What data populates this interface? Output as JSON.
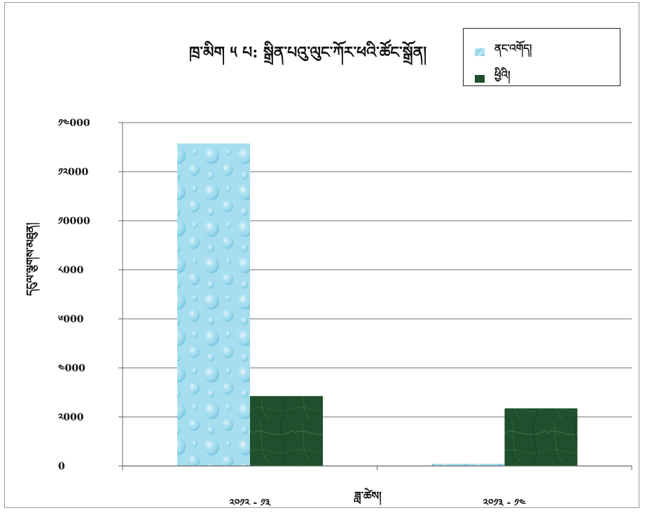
{
  "chart_data": {
    "type": "bar",
    "title": "ཁྲ་མིག ༥ པ: སྒྲིན་པའུ་ལུང་ཀོར་ཕའི་ཚོང་སྒྲོན།",
    "xlabel": "ཟླ་ཚེས།",
    "ylabel": "དངུལ་ལྕགས་མཐུན།",
    "categories": [
      "༢༠༡༢ - ༡༣",
      "༢༠༡༣ - ༡༤"
    ],
    "series": [
      {
        "name": "ནང་འགོད།",
        "values": [
          13150,
          90
        ],
        "color": "#9fdcee"
      },
      {
        "name": "ཕྱིའི།",
        "values": [
          2850,
          2350
        ],
        "color": "#1f4f2c"
      }
    ],
    "ylim": [
      0,
      14000
    ],
    "yticks": [
      0,
      2000,
      4000,
      6000,
      8000,
      10000,
      12000,
      14000
    ],
    "ytick_labels": [
      "0",
      "༢000",
      "༤000",
      "༦000",
      "༨000",
      "༡0000",
      "༡༢000",
      "༡༤000"
    ],
    "grid": true,
    "legend_position": "top-right"
  }
}
